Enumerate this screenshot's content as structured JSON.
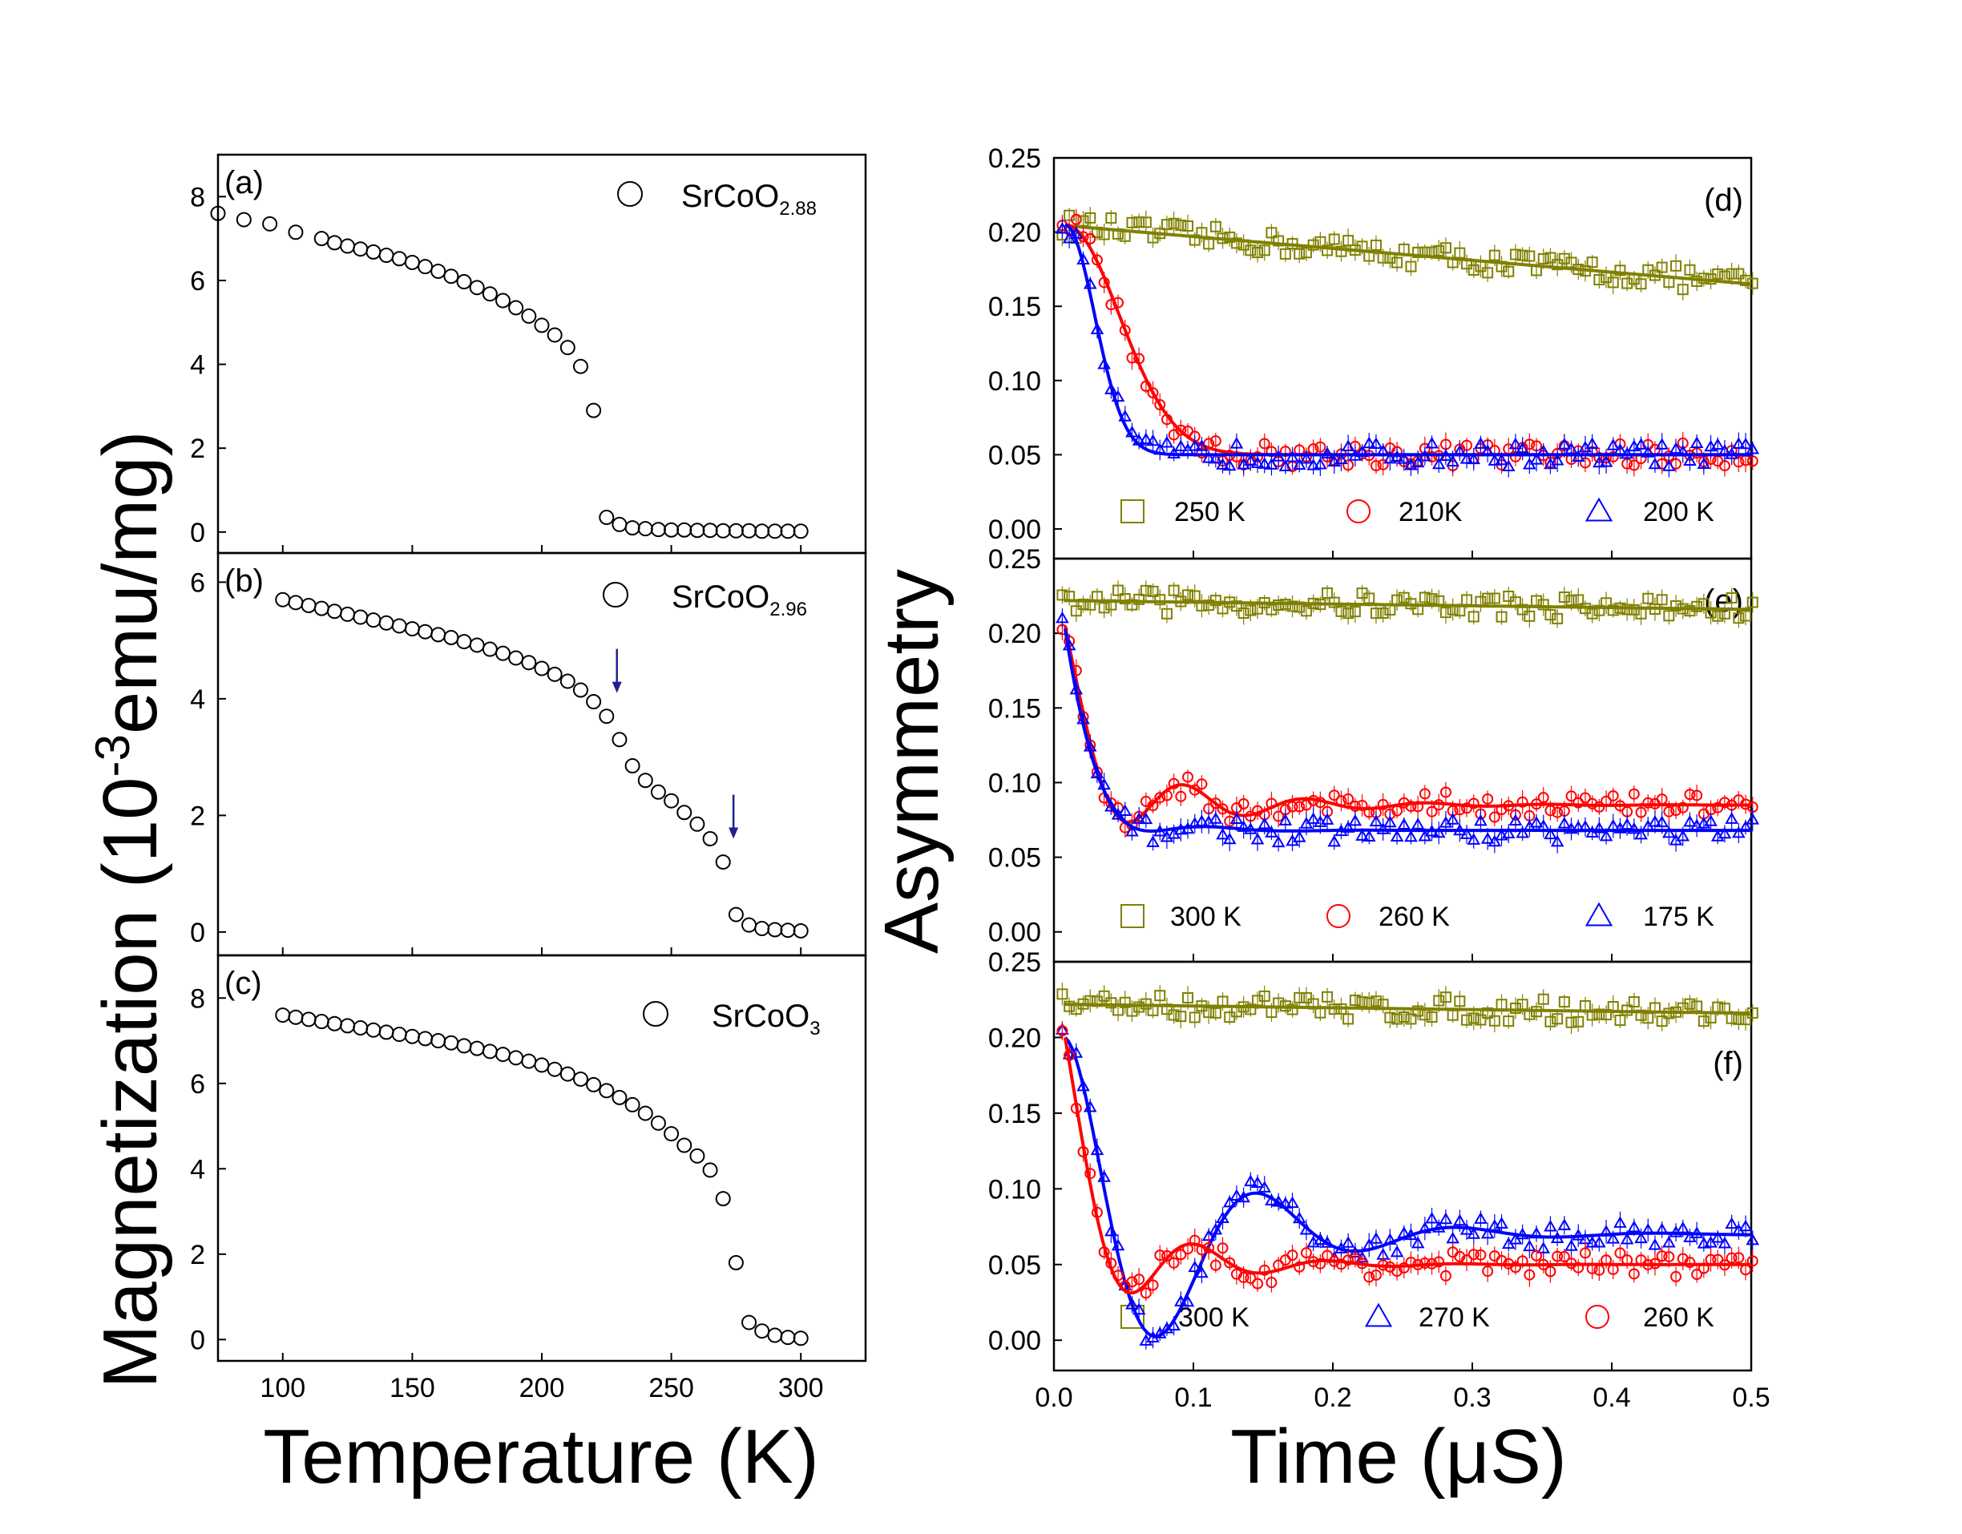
{
  "chart_data": [
    {
      "id": "a",
      "type": "scatter",
      "panel_label": "(a)",
      "legend": {
        "name": "SrCoO",
        "subscript": "2.88",
        "position": "top-right"
      },
      "xlim": [
        75,
        325
      ],
      "ylim": [
        -0.5,
        9.0
      ],
      "yticks": [
        "0",
        "2",
        "4",
        "6",
        "8"
      ],
      "x": [
        75,
        85,
        95,
        105,
        115,
        120,
        125,
        130,
        135,
        140,
        145,
        150,
        155,
        160,
        165,
        170,
        175,
        180,
        185,
        190,
        195,
        200,
        205,
        210,
        215,
        220,
        225,
        230,
        235,
        240,
        245,
        250,
        255,
        260,
        265,
        270,
        275,
        280,
        285,
        290,
        295,
        300
      ],
      "y": [
        7.6,
        7.45,
        7.35,
        7.15,
        7.0,
        6.9,
        6.82,
        6.75,
        6.68,
        6.6,
        6.52,
        6.43,
        6.33,
        6.22,
        6.1,
        5.97,
        5.83,
        5.68,
        5.52,
        5.35,
        5.15,
        4.93,
        4.7,
        4.4,
        3.95,
        2.9,
        0.35,
        0.18,
        0.1,
        0.08,
        0.06,
        0.05,
        0.05,
        0.04,
        0.04,
        0.03,
        0.03,
        0.03,
        0.02,
        0.02,
        0.02,
        0.02
      ]
    },
    {
      "id": "b",
      "type": "scatter",
      "panel_label": "(b)",
      "legend": {
        "name": "SrCoO",
        "subscript": "2.96",
        "position": "top-right"
      },
      "xlim": [
        75,
        325
      ],
      "ylim": [
        -0.4,
        6.5
      ],
      "yticks": [
        "0",
        "2",
        "4",
        "6"
      ],
      "annotations": [
        {
          "type": "arrow",
          "x": 229,
          "y": 4.1
        },
        {
          "type": "arrow",
          "x": 274,
          "y": 1.6
        }
      ],
      "x": [
        100,
        105,
        110,
        115,
        120,
        125,
        130,
        135,
        140,
        145,
        150,
        155,
        160,
        165,
        170,
        175,
        180,
        185,
        190,
        195,
        200,
        205,
        210,
        215,
        220,
        225,
        230,
        235,
        240,
        245,
        250,
        255,
        260,
        265,
        270,
        275,
        280,
        285,
        290,
        295,
        300
      ],
      "y": [
        5.7,
        5.65,
        5.6,
        5.55,
        5.5,
        5.45,
        5.4,
        5.35,
        5.3,
        5.25,
        5.2,
        5.15,
        5.1,
        5.05,
        4.98,
        4.92,
        4.85,
        4.78,
        4.7,
        4.62,
        4.52,
        4.42,
        4.3,
        4.15,
        3.95,
        3.7,
        3.3,
        2.85,
        2.6,
        2.4,
        2.25,
        2.05,
        1.85,
        1.6,
        1.2,
        0.3,
        0.12,
        0.06,
        0.04,
        0.03,
        0.02
      ]
    },
    {
      "id": "c",
      "type": "scatter",
      "panel_label": "(c)",
      "legend": {
        "name": "SrCoO",
        "subscript": "3",
        "position": "top-right"
      },
      "xlim": [
        75,
        325
      ],
      "ylim": [
        -0.5,
        9.0
      ],
      "yticks": [
        "0",
        "2",
        "4",
        "6",
        "8"
      ],
      "xticks": [
        "100",
        "150",
        "200",
        "250",
        "300"
      ],
      "x": [
        100,
        105,
        110,
        115,
        120,
        125,
        130,
        135,
        140,
        145,
        150,
        155,
        160,
        165,
        170,
        175,
        180,
        185,
        190,
        195,
        200,
        205,
        210,
        215,
        220,
        225,
        230,
        235,
        240,
        245,
        250,
        255,
        260,
        265,
        270,
        275,
        280,
        285,
        290,
        295,
        300
      ],
      "y": [
        7.6,
        7.55,
        7.5,
        7.45,
        7.4,
        7.35,
        7.3,
        7.25,
        7.2,
        7.15,
        7.1,
        7.05,
        7.0,
        6.95,
        6.88,
        6.82,
        6.75,
        6.68,
        6.6,
        6.52,
        6.43,
        6.33,
        6.22,
        6.1,
        5.97,
        5.83,
        5.67,
        5.5,
        5.3,
        5.07,
        4.82,
        4.55,
        4.3,
        3.97,
        3.3,
        1.8,
        0.4,
        0.2,
        0.1,
        0.05,
        0.03
      ]
    },
    {
      "id": "d",
      "type": "scatter",
      "panel_label": "(d)",
      "xlim": [
        0.0,
        0.5
      ],
      "ylim": [
        -0.02,
        0.25
      ],
      "yticks": [
        "0.25",
        "0.20",
        "0.15",
        "0.10",
        "0.05",
        "0.00"
      ],
      "series": [
        {
          "name": "250 K",
          "marker": "square",
          "color": "#808000",
          "fit": "linear",
          "params": [
            0.205,
            -0.08
          ]
        },
        {
          "name": "210K",
          "marker": "circle",
          "color": "#ff0000",
          "fit": "decay",
          "params": [
            0.05,
            0.155,
            0.055
          ]
        },
        {
          "name": "200 K",
          "marker": "triangle",
          "color": "#0000ff",
          "fit": "decay",
          "params": [
            0.05,
            0.155,
            0.03
          ]
        }
      ]
    },
    {
      "id": "e",
      "type": "scatter",
      "panel_label": "(e)",
      "xlim": [
        0.0,
        0.5
      ],
      "ylim": [
        -0.02,
        0.25
      ],
      "yticks": [
        "0.25",
        "0.20",
        "0.15",
        "0.10",
        "0.05",
        "0.00"
      ],
      "series": [
        {
          "name": "300 K",
          "marker": "square",
          "color": "#808000",
          "fit": "linear",
          "params": [
            0.222,
            -0.012
          ]
        },
        {
          "name": "260 K",
          "marker": "circle",
          "color": "#ff0000",
          "fit": "osc",
          "params": [
            0.085,
            0.12,
            0.3,
            0.08,
            11.5
          ]
        },
        {
          "name": "175 K",
          "marker": "triangle",
          "color": "#0000ff",
          "fit": "osc",
          "params": [
            0.068,
            0.135,
            0.2,
            0.04,
            9.0
          ]
        }
      ]
    },
    {
      "id": "f",
      "type": "scatter",
      "panel_label": "(f)",
      "xlim": [
        0.0,
        0.5
      ],
      "ylim": [
        -0.02,
        0.25
      ],
      "yticks": [
        "0.25",
        "0.20",
        "0.15",
        "0.10",
        "0.05",
        "0.00"
      ],
      "xticks": [
        "0.0",
        "0.1",
        "0.2",
        "0.3",
        "0.4",
        "0.5"
      ],
      "series": [
        {
          "name": "300 K",
          "marker": "square",
          "color": "#808000",
          "fit": "linear",
          "params": [
            0.222,
            -0.012
          ]
        },
        {
          "name": "270 K",
          "marker": "triangle",
          "color": "#0000ff",
          "fit": "osc",
          "params": [
            0.07,
            0.13,
            1.2,
            0.08,
            7.0
          ]
        },
        {
          "name": "260 K",
          "marker": "circle",
          "color": "#ff0000",
          "fit": "osc",
          "params": [
            0.05,
            0.15,
            0.4,
            0.06,
            10.5
          ]
        }
      ]
    }
  ],
  "axes_text": {
    "left_ylabel": "Magnetization (10",
    "left_ylabel_exp": "-3",
    "left_ylabel_unit": "emu/mg)",
    "left_xlabel": "Temperature (K)",
    "right_ylabel": "Asymmetry",
    "right_xlabel": "Time (μS)"
  }
}
